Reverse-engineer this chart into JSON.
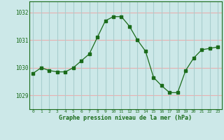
{
  "x": [
    0,
    1,
    2,
    3,
    4,
    5,
    6,
    7,
    8,
    9,
    10,
    11,
    12,
    13,
    14,
    15,
    16,
    17,
    18,
    19,
    20,
    21,
    22,
    23
  ],
  "y": [
    1029.8,
    1030.0,
    1029.9,
    1029.85,
    1029.85,
    1030.0,
    1030.25,
    1030.5,
    1031.1,
    1031.7,
    1031.85,
    1031.85,
    1031.5,
    1031.0,
    1030.6,
    1029.65,
    1029.35,
    1029.1,
    1029.1,
    1029.9,
    1030.35,
    1030.65,
    1030.7,
    1030.75
  ],
  "line_color": "#1a6b1a",
  "marker_color": "#1a6b1a",
  "bg_color": "#cce8e8",
  "hgrid_color": "#e8b0b0",
  "vgrid_color": "#a8cece",
  "xlabel": "Graphe pression niveau de la mer (hPa)",
  "xlabel_color": "#1a6b1a",
  "tick_color": "#1a6b1a",
  "ylim": [
    1028.5,
    1032.4
  ],
  "yticks": [
    1029,
    1030,
    1031,
    1032
  ],
  "xticks": [
    0,
    1,
    2,
    3,
    4,
    5,
    6,
    7,
    8,
    9,
    10,
    11,
    12,
    13,
    14,
    15,
    16,
    17,
    18,
    19,
    20,
    21,
    22,
    23
  ],
  "border_color": "#1a6b1a"
}
